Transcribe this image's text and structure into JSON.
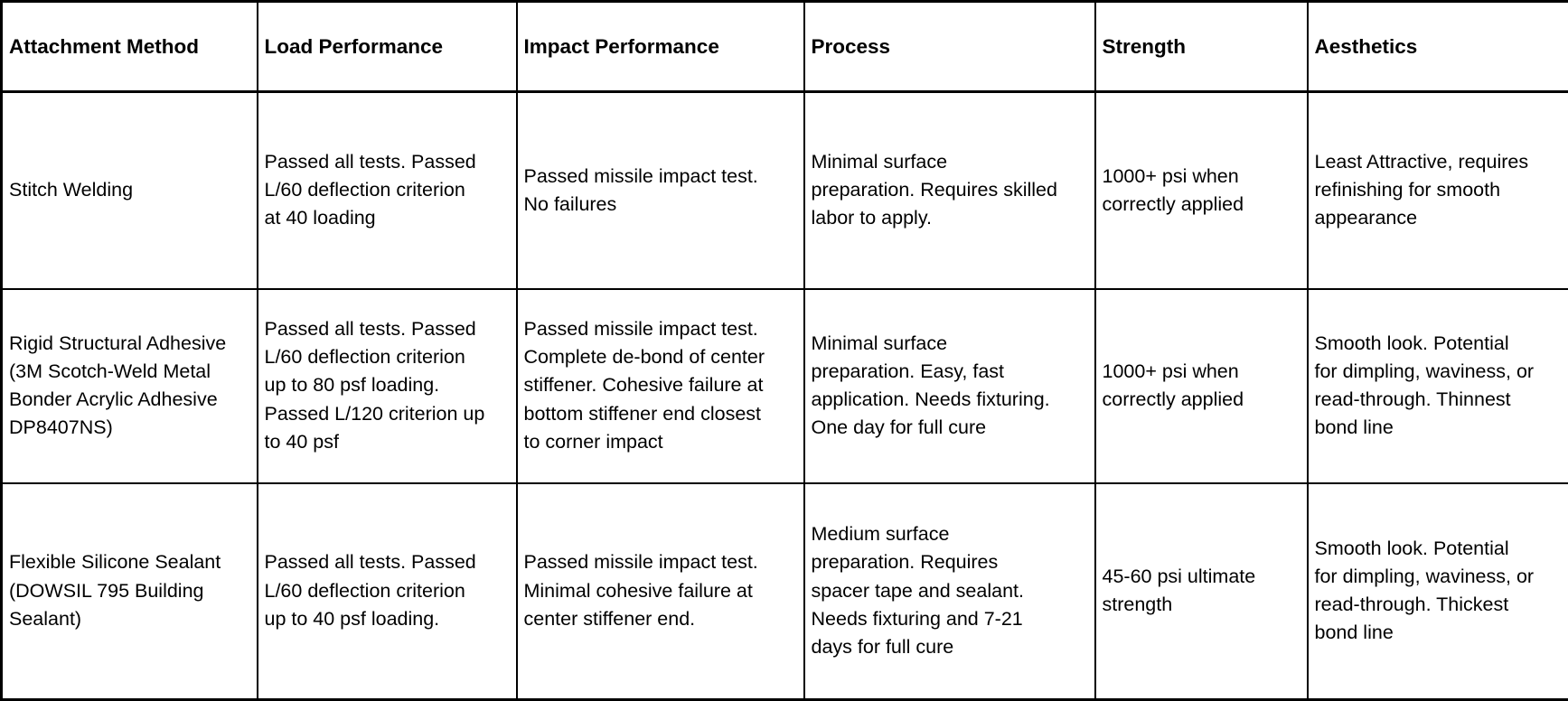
{
  "colors": {
    "text": "#000000",
    "border": "#000000",
    "background": "#ffffff"
  },
  "table": {
    "headers": [
      "Attachment Method",
      "Load Performance",
      "Impact Performance",
      "Process",
      "Strength",
      "Aesthetics"
    ],
    "rows": [
      {
        "cells": [
          "Stitch Welding",
          "Passed all tests. Passed\nL/60 deflection criterion\nat 40 loading",
          "Passed missile impact test.\nNo failures",
          "Minimal surface\npreparation. Requires skilled\nlabor to apply.",
          "1000+ psi when\ncorrectly applied",
          "Least Attractive, requires\nrefinishing for smooth\nappearance"
        ]
      },
      {
        "cells": [
          "Rigid Structural Adhesive\n(3M Scotch-Weld Metal\nBonder Acrylic Adhesive\nDP8407NS)",
          "Passed all tests. Passed\nL/60 deflection criterion\nup to 80 psf loading.\nPassed L/120 criterion up\nto 40 psf",
          "Passed missile impact test.\nComplete de-bond of center\nstiffener. Cohesive failure at\nbottom stiffener end closest\nto corner impact",
          "Minimal surface\npreparation. Easy, fast\napplication. Needs fixturing.\nOne day for full cure",
          "1000+ psi when\ncorrectly applied",
          "Smooth look. Potential\nfor dimpling, waviness, or\nread-through. Thinnest\nbond line"
        ]
      },
      {
        "cells": [
          "Flexible Silicone Sealant\n(DOWSIL 795 Building\nSealant)",
          "Passed all tests. Passed\nL/60 deflection criterion\nup to 40 psf loading.",
          "Passed missile impact test.\nMinimal cohesive failure at\ncenter stiffener end.",
          "Medium surface\npreparation. Requires\nspacer tape and sealant.\nNeeds fixturing and 7-21\ndays for full cure",
          "45-60 psi ultimate\nstrength",
          "Smooth look. Potential\nfor dimpling, waviness, or\nread-through. Thickest\nbond line"
        ]
      }
    ]
  }
}
